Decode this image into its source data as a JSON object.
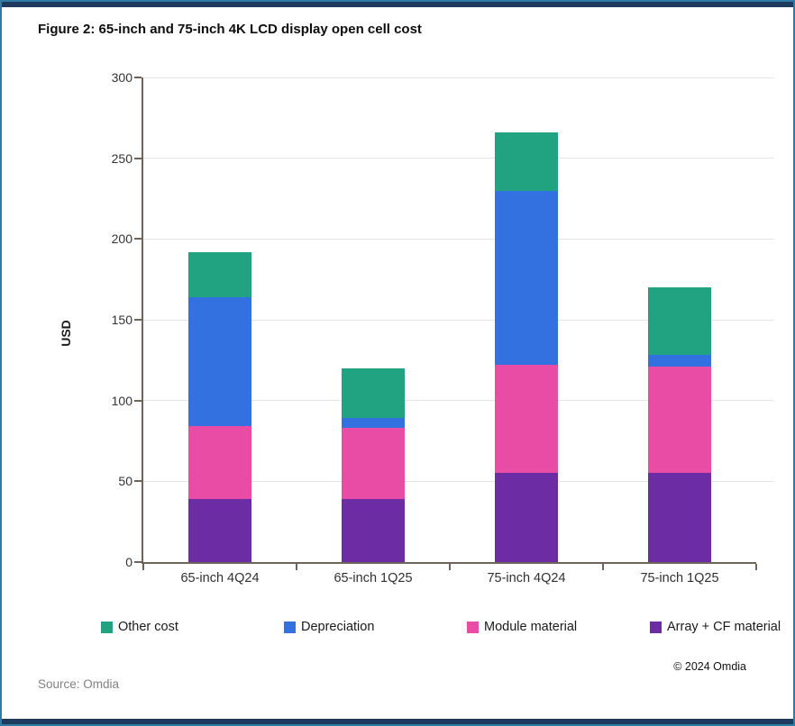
{
  "figure": {
    "title": "Figure 2: 65-inch and 75-inch 4K LCD display open cell cost",
    "source": "Source: Omdia",
    "copyright": "© 2024 Omdia"
  },
  "colors": {
    "frame_border": "#2E7BA3",
    "frame_accent_bar": "#1E3A5F",
    "axis": "#6E6459",
    "gridline": "#E4E4E4",
    "tick_text": "#333333",
    "source_text": "#808080"
  },
  "chart_data": {
    "type": "bar",
    "stacked": true,
    "title": "Figure 2: 65-inch and 75-inch 4K LCD display open cell cost",
    "categories": [
      "65-inch 4Q24",
      "65-inch 1Q25",
      "75-inch 4Q24",
      "75-inch 1Q25"
    ],
    "series": [
      {
        "name": "Other cost",
        "color": "#21A382",
        "values": [
          28,
          31,
          36,
          42
        ]
      },
      {
        "name": "Depreciation",
        "color": "#3471E0",
        "values": [
          80,
          6,
          108,
          7
        ]
      },
      {
        "name": "Module material",
        "color": "#E94CA4",
        "values": [
          45,
          44,
          67,
          66
        ]
      },
      {
        "name": "Array + CF material",
        "color": "#6C2DA4",
        "values": [
          39,
          39,
          55,
          55
        ]
      }
    ],
    "stack_order": "bottom-to-top is reverse of series list",
    "xlabel": "",
    "ylabel": "USD",
    "ylim": [
      0,
      300
    ],
    "ytick_step": 50,
    "grid": true,
    "legend_position": "bottom"
  }
}
